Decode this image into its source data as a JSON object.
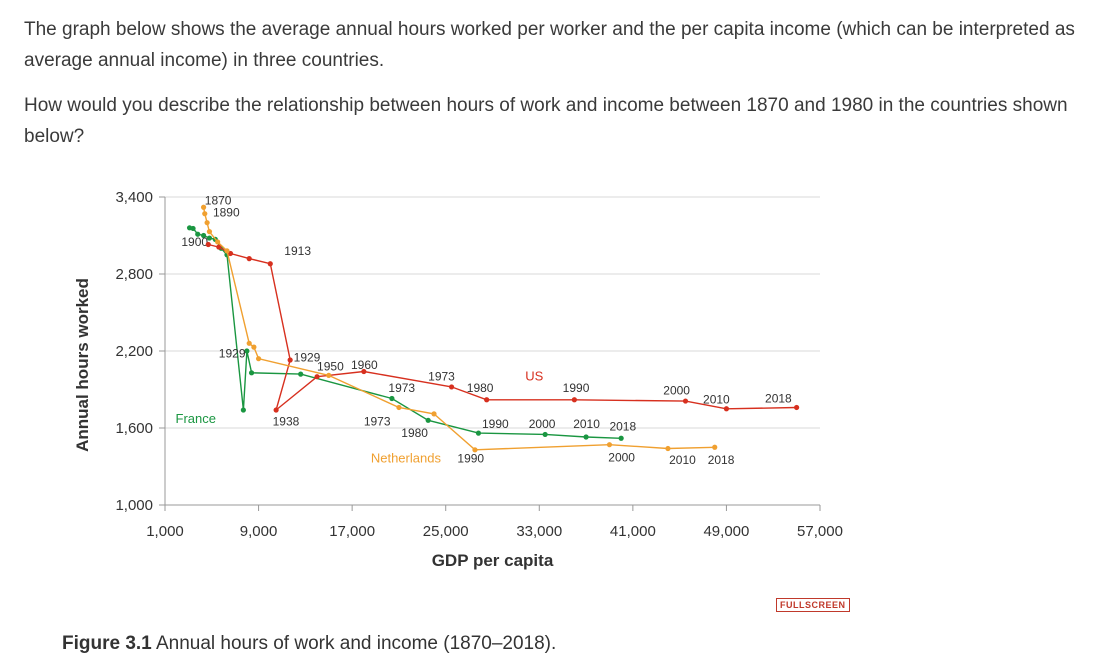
{
  "intro": {
    "paragraph1": "The graph below shows the average annual hours worked per worker and the per capita income (which can be interpreted as average annual income) in three countries.",
    "question": "How would you describe the relationship between hours of work and income between 1870 and 1980 in the countries shown below?"
  },
  "fullscreen_label": "FULLSCREEN",
  "caption": {
    "figure_label": "Figure 3.1",
    "text": " Annual hours of work and income (1870–2018)."
  },
  "chart_data": {
    "type": "line",
    "xlabel": "GDP per capita",
    "ylabel": "Annual hours worked",
    "xlim": [
      1000,
      57000
    ],
    "ylim": [
      1000,
      3400
    ],
    "xticks": [
      1000,
      9000,
      17000,
      25000,
      33000,
      41000,
      49000,
      57000
    ],
    "xtick_labels": [
      "1,000",
      "9,000",
      "17,000",
      "25,000",
      "33,000",
      "41,000",
      "49,000",
      "57,000"
    ],
    "yticks": [
      1000,
      1600,
      2200,
      2800,
      3400
    ],
    "ytick_labels": [
      "1,000",
      "1,600",
      "2,200",
      "2,800",
      "3,400"
    ],
    "grid": "horizontal",
    "series": [
      {
        "name": "France",
        "color": "#1a9641",
        "points": [
          [
            3100,
            3160
          ],
          [
            3400,
            3155
          ],
          [
            3800,
            3110
          ],
          [
            4300,
            3100
          ],
          [
            4800,
            3080
          ],
          [
            5300,
            3070
          ],
          [
            5800,
            3000
          ],
          [
            6300,
            2950
          ],
          [
            7700,
            1740
          ],
          [
            8000,
            2200
          ],
          [
            8400,
            2030
          ],
          [
            12600,
            2020
          ],
          [
            20400,
            1830
          ],
          [
            23500,
            1660
          ],
          [
            27800,
            1560
          ],
          [
            33500,
            1550
          ],
          [
            37000,
            1530
          ],
          [
            40000,
            1520
          ]
        ],
        "labels": [
          {
            "text": "1900",
            "x": 2400,
            "y": 3020
          },
          {
            "text": "1929",
            "x": 5600,
            "y": 2150
          },
          {
            "text": "France",
            "x": 1900,
            "y": 1640
          },
          {
            "text": "1973",
            "x": 20100,
            "y": 1880
          },
          {
            "text": "1990",
            "x": 28100,
            "y": 1600
          },
          {
            "text": "2000",
            "x": 32100,
            "y": 1600
          },
          {
            "text": "2010",
            "x": 35900,
            "y": 1600
          },
          {
            "text": "2018",
            "x": 39000,
            "y": 1580
          }
        ]
      },
      {
        "name": "US",
        "color": "#d7301f",
        "points": [
          [
            4700,
            3030
          ],
          [
            5600,
            3010
          ],
          [
            6600,
            2960
          ],
          [
            8200,
            2920
          ],
          [
            10000,
            2880
          ],
          [
            11700,
            2130
          ],
          [
            10500,
            1740
          ],
          [
            14000,
            2000
          ],
          [
            18000,
            2040
          ],
          [
            25500,
            1920
          ],
          [
            28500,
            1820
          ],
          [
            36000,
            1820
          ],
          [
            45500,
            1810
          ],
          [
            49000,
            1750
          ],
          [
            55000,
            1760
          ]
        ],
        "labels": [
          {
            "text": "1913",
            "x": 11200,
            "y": 2950
          },
          {
            "text": "1929",
            "x": 12000,
            "y": 2120
          },
          {
            "text": "1938",
            "x": 10200,
            "y": 1620
          },
          {
            "text": "1950",
            "x": 14000,
            "y": 2050
          },
          {
            "text": "1960",
            "x": 16900,
            "y": 2060
          },
          {
            "text": "1973",
            "x": 23500,
            "y": 1970
          },
          {
            "text": "1980",
            "x": 26800,
            "y": 1880
          },
          {
            "text": "US",
            "x": 31800,
            "y": 1970
          },
          {
            "text": "1990",
            "x": 35000,
            "y": 1880
          },
          {
            "text": "2000",
            "x": 43600,
            "y": 1860
          },
          {
            "text": "2010",
            "x": 47000,
            "y": 1790
          },
          {
            "text": "2018",
            "x": 52300,
            "y": 1800
          }
        ]
      },
      {
        "name": "Netherlands",
        "color": "#f0a030",
        "points": [
          [
            4300,
            3320
          ],
          [
            4400,
            3270
          ],
          [
            4600,
            3200
          ],
          [
            4800,
            3130
          ],
          [
            5500,
            3050
          ],
          [
            6300,
            2980
          ],
          [
            8200,
            2260
          ],
          [
            8600,
            2230
          ],
          [
            9000,
            2140
          ],
          [
            15000,
            2010
          ],
          [
            21000,
            1760
          ],
          [
            24000,
            1710
          ],
          [
            27500,
            1430
          ],
          [
            39000,
            1470
          ],
          [
            44000,
            1440
          ],
          [
            48000,
            1450
          ]
        ],
        "labels": [
          {
            "text": "1870",
            "x": 4400,
            "y": 3340
          },
          {
            "text": "1890",
            "x": 5100,
            "y": 3250
          },
          {
            "text": "1973",
            "x": 18000,
            "y": 1620
          },
          {
            "text": "1980",
            "x": 21200,
            "y": 1530
          },
          {
            "text": "Netherlands",
            "x": 18600,
            "y": 1330
          },
          {
            "text": "1990",
            "x": 26000,
            "y": 1330
          },
          {
            "text": "2000",
            "x": 38900,
            "y": 1340
          },
          {
            "text": "2010",
            "x": 44100,
            "y": 1320
          },
          {
            "text": "2018",
            "x": 47400,
            "y": 1320
          }
        ]
      }
    ]
  }
}
